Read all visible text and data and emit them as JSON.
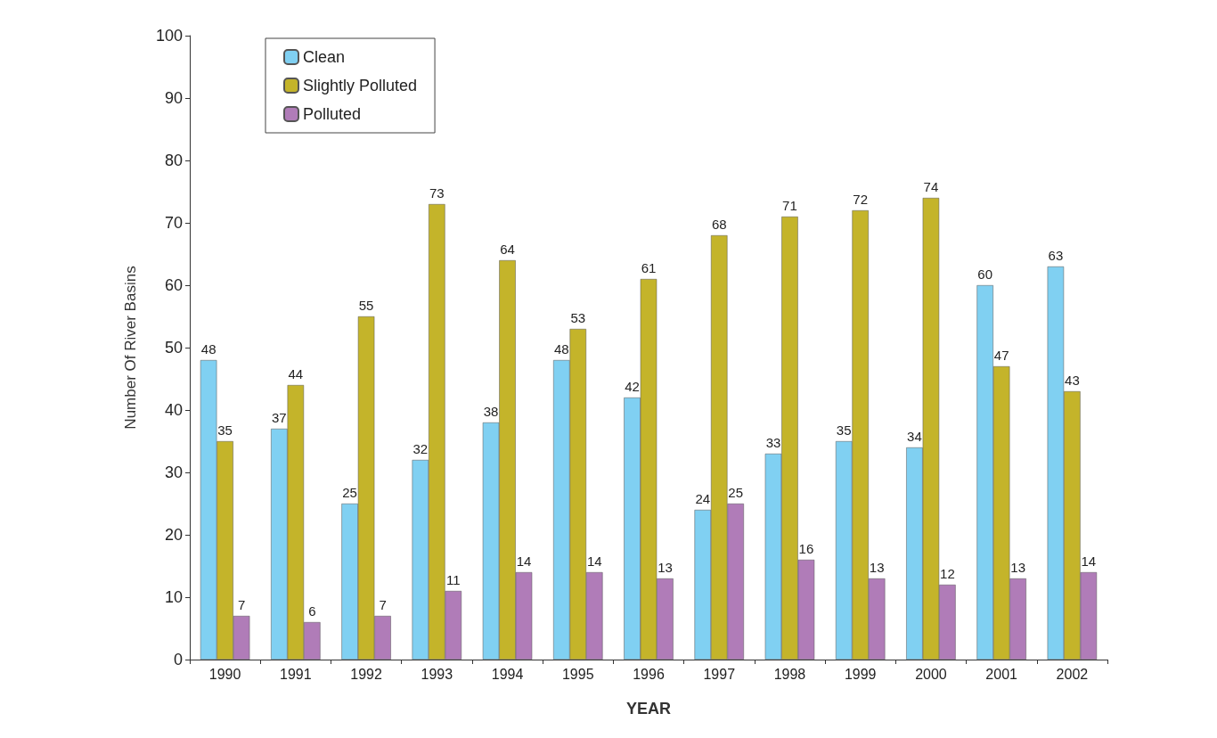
{
  "chart_data": {
    "type": "bar",
    "xlabel": "YEAR",
    "ylabel": "Number Of River Basins",
    "categories": [
      "1990",
      "1991",
      "1992",
      "1993",
      "1994",
      "1995",
      "1996",
      "1997",
      "1998",
      "1999",
      "2000",
      "2001",
      "2002"
    ],
    "series": [
      {
        "name": "Clean",
        "color": "#80d0f2",
        "values": [
          48,
          37,
          25,
          32,
          38,
          48,
          42,
          24,
          33,
          35,
          34,
          60,
          63
        ]
      },
      {
        "name": "Slightly Polluted",
        "color": "#c4b42a",
        "values": [
          35,
          44,
          55,
          73,
          64,
          53,
          61,
          68,
          71,
          72,
          74,
          47,
          43
        ]
      },
      {
        "name": "Polluted",
        "color": "#b07cb8",
        "values": [
          7,
          6,
          7,
          11,
          14,
          14,
          13,
          25,
          16,
          13,
          12,
          13,
          14
        ]
      }
    ],
    "ylim": [
      0,
      100
    ],
    "yticks": [
      0,
      10,
      20,
      30,
      40,
      50,
      60,
      70,
      80,
      90,
      100
    ],
    "grid": false,
    "legend": "top left",
    "data_labels": true
  }
}
